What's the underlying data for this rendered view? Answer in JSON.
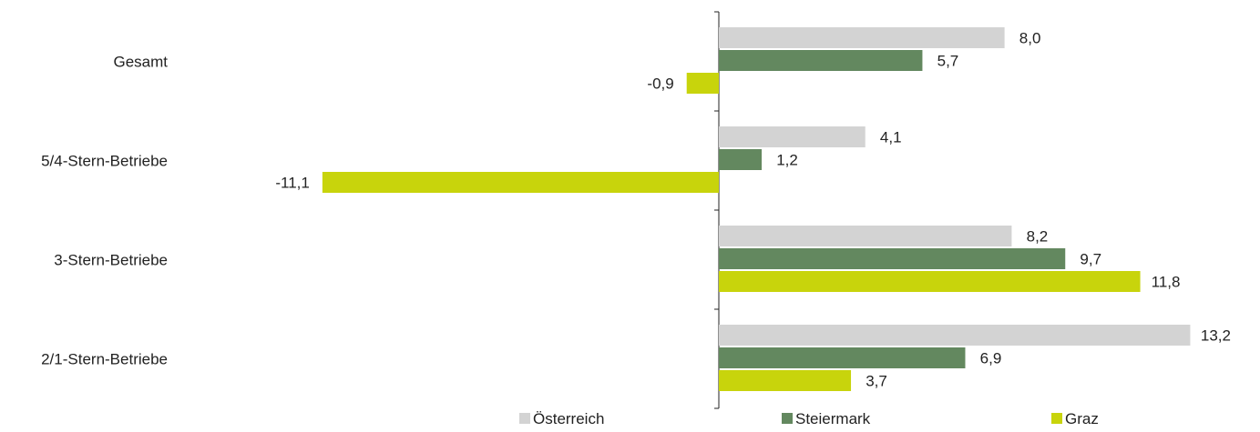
{
  "chart_data": {
    "type": "bar",
    "orientation": "horizontal",
    "title": "",
    "categories": [
      "Gesamt",
      "5/4-Stern-Betriebe",
      "3-Stern-Betriebe",
      "2/1-Stern-Betriebe"
    ],
    "series": [
      {
        "name": "Österreich",
        "color": "#d3d3d3",
        "values": [
          8.0,
          4.1,
          8.2,
          13.2
        ],
        "labels": [
          "8,0",
          "4,1",
          "8,2",
          "13,2"
        ]
      },
      {
        "name": "Steiermark",
        "color": "#63885f",
        "values": [
          5.7,
          1.2,
          9.7,
          6.9
        ],
        "labels": [
          "5,7",
          "1,2",
          "9,7",
          "6,9"
        ]
      },
      {
        "name": "Graz",
        "color": "#c8d40c",
        "values": [
          -0.9,
          -11.1,
          11.8,
          3.7
        ],
        "labels": [
          "-0,9",
          "-11,1",
          "11,8",
          "3,7"
        ]
      }
    ],
    "xlim": [
      -11.1,
      13.2
    ],
    "legend_position": "bottom",
    "grid": false,
    "decimal_separator": ","
  }
}
